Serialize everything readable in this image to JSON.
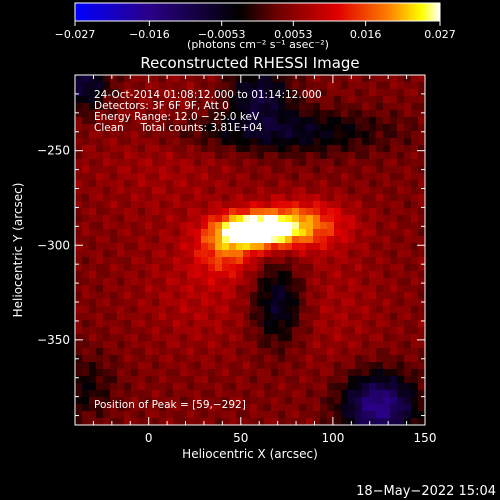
{
  "chart_data": {
    "type": "heatmap",
    "title": "Reconstructed RHESSI Image",
    "xlabel": "Heliocentric X (arcsec)",
    "ylabel": "Heliocentric Y (arcsec)",
    "xlim": [
      -40,
      150
    ],
    "ylim": [
      -395,
      -210
    ],
    "x_ticks": [
      0,
      50,
      100,
      150
    ],
    "x_tick_labels": [
      "0",
      "50",
      "100",
      "150"
    ],
    "y_ticks": [
      -250,
      -300,
      -350
    ],
    "y_tick_labels": [
      "−250",
      "−300",
      "−350"
    ],
    "colorbar": {
      "min": -0.027,
      "max": 0.027,
      "ticks": [
        -0.027,
        -0.016,
        -0.0053,
        0.0053,
        0.016,
        0.027
      ],
      "tick_labels": [
        "−0.027",
        "−0.016",
        "−0.0053",
        "0.0053",
        "0.016",
        "0.027"
      ],
      "units_label": "(photons cm⁻² s⁻¹ asec⁻²)"
    },
    "annotations": [
      "24-Oct-2014 01:08:12.000 to 01:14:12.000",
      "Detectors: 3F 6F 9F, Att 0",
      "Energy Range: 12.0 − 25.0 keV",
      "Clean     Total counts: 3.81E+04",
      "Position of Peak = [59,−292]"
    ],
    "peak": {
      "x": 59,
      "y": -292
    },
    "sources": [
      {
        "x": 58,
        "y": -292,
        "sx": 14,
        "sy": 6,
        "amp": 0.027
      },
      {
        "x": 82,
        "y": -289,
        "sx": 18,
        "sy": 9,
        "amp": 0.014
      },
      {
        "x": 42,
        "y": -302,
        "sx": 12,
        "sy": 10,
        "amp": 0.01
      },
      {
        "x": 30,
        "y": -325,
        "sx": 25,
        "sy": 22,
        "amp": 0.004
      },
      {
        "x": 100,
        "y": -330,
        "sx": 20,
        "sy": 25,
        "amp": 0.003
      },
      {
        "x": 10,
        "y": -255,
        "sx": 30,
        "sy": 25,
        "amp": 0.003
      },
      {
        "x": 70,
        "y": -330,
        "sx": 10,
        "sy": 16,
        "amp": -0.012
      },
      {
        "x": 70,
        "y": -240,
        "sx": 40,
        "sy": 8,
        "amp": -0.01
      },
      {
        "x": 125,
        "y": -385,
        "sx": 14,
        "sy": 12,
        "amp": -0.02
      },
      {
        "x": -35,
        "y": -215,
        "sx": 10,
        "sy": 10,
        "amp": -0.012
      },
      {
        "x": 60,
        "y": -220,
        "sx": 12,
        "sy": 10,
        "amp": -0.012
      },
      {
        "x": -35,
        "y": -375,
        "sx": 12,
        "sy": 12,
        "amp": -0.006
      }
    ],
    "background_level": 0.004,
    "grid": false
  },
  "timestamp": "18−May−2022 15:04",
  "colors": {
    "background": "#000000",
    "foreground": "#ffffff",
    "colormap": [
      "#0000ff",
      "#00007f",
      "#000000",
      "#7f0000",
      "#ff0000",
      "#ff7f00",
      "#ffff00",
      "#ffffff"
    ]
  }
}
